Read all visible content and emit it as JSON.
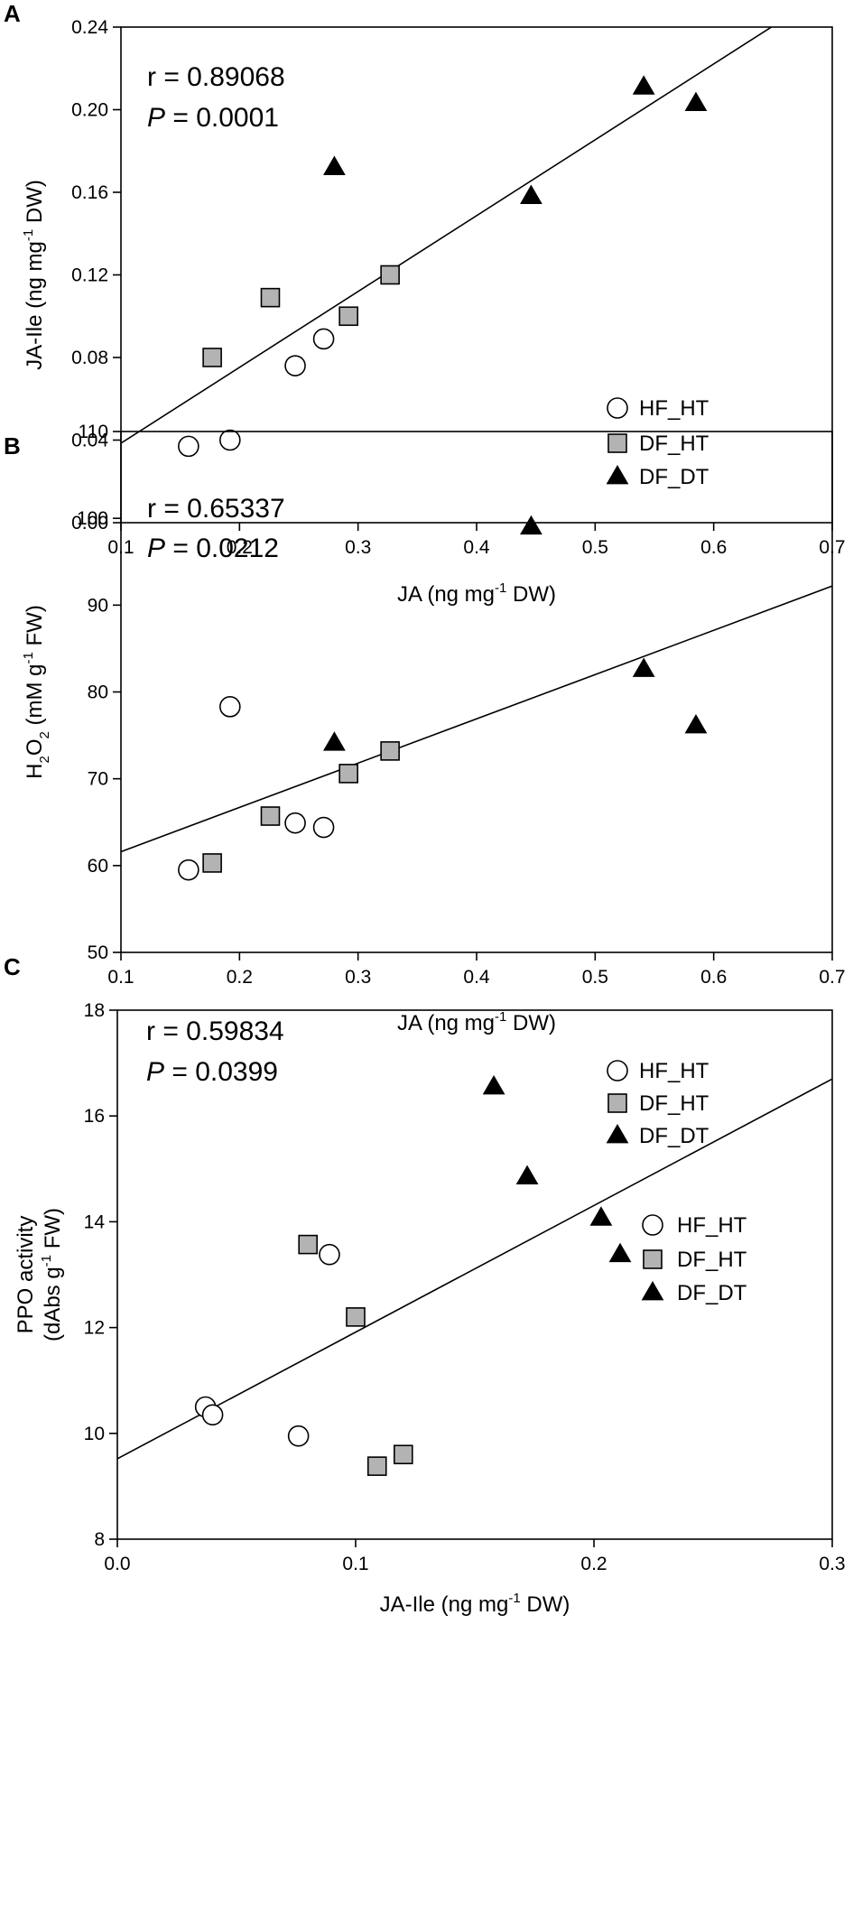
{
  "figure": {
    "series_styles": {
      "HF_HT": {
        "marker": "circle",
        "fill": "#ffffff",
        "stroke": "#000000"
      },
      "DF_HT": {
        "marker": "square",
        "fill": "#b3b3b3",
        "stroke": "#000000"
      },
      "DF_DT": {
        "marker": "triangle",
        "fill": "#000000",
        "stroke": "#000000"
      }
    }
  },
  "chart_data": [
    {
      "panel": "A",
      "type": "scatter",
      "xlabel": {
        "main": "JA (ng mg",
        "sup": "-1",
        "tail": " DW)"
      },
      "ylabel": {
        "main": "JA-Ile (ng mg",
        "sup": "-1",
        "tail": " DW)"
      },
      "xlim": [
        0.1,
        0.7
      ],
      "ylim": [
        0.0,
        0.24
      ],
      "xticks": [
        0.1,
        0.2,
        0.3,
        0.4,
        0.5,
        0.6,
        0.7
      ],
      "xtick_labels": [
        "0.1",
        "0.2",
        "0.3",
        "0.4",
        "0.5",
        "0.6",
        "0.7"
      ],
      "yticks": [
        0.0,
        0.04,
        0.08,
        0.12,
        0.16,
        0.2,
        0.24
      ],
      "ytick_labels": [
        "0.00",
        "0.04",
        "0.08",
        "0.12",
        "0.16",
        "0.20",
        "0.24"
      ],
      "stats": {
        "r_text": "r = 0.89068",
        "p_label": "P",
        "p_text": " = 0.0001"
      },
      "fit_line": {
        "x": [
          0.1,
          0.65
        ],
        "y": [
          0.0385,
          0.2405
        ]
      },
      "series": [
        {
          "name": "HF_HT",
          "x": [
            0.157,
            0.192,
            0.247,
            0.271
          ],
          "y": [
            0.037,
            0.04,
            0.076,
            0.089
          ]
        },
        {
          "name": "DF_HT",
          "x": [
            0.177,
            0.226,
            0.292,
            0.327
          ],
          "y": [
            0.08,
            0.109,
            0.1,
            0.12
          ]
        },
        {
          "name": "DF_DT",
          "x": [
            0.28,
            0.446,
            0.541,
            0.585
          ],
          "y": [
            0.172,
            0.158,
            0.211,
            0.203
          ]
        }
      ],
      "legend": [
        "HF_HT",
        "DF_HT",
        "DF_DT"
      ]
    },
    {
      "panel": "B",
      "type": "scatter",
      "xlabel": {
        "main": "JA (ng mg",
        "sup": "-1",
        "tail": " DW)"
      },
      "ylabel": {
        "h2o2": true,
        "main": "H",
        "sub1": "2",
        "mid": "O",
        "sub2": "2",
        "rest": " (mM g",
        "sup": "-1",
        "tail": " FW)"
      },
      "xlim": [
        0.1,
        0.7
      ],
      "ylim": [
        50,
        110
      ],
      "xticks": [
        0.1,
        0.2,
        0.3,
        0.4,
        0.5,
        0.6,
        0.7
      ],
      "xtick_labels": [
        "0.1",
        "0.2",
        "0.3",
        "0.4",
        "0.5",
        "0.6",
        "0.7"
      ],
      "yticks": [
        50,
        60,
        70,
        80,
        90,
        100,
        110
      ],
      "ytick_labels": [
        "50",
        "60",
        "70",
        "80",
        "90",
        "100",
        "110"
      ],
      "stats": {
        "r_text": "r = 0.65337",
        "p_label": "P",
        "p_text": " = 0.0212"
      },
      "fit_line": {
        "x": [
          0.1,
          0.7
        ],
        "y": [
          61.6,
          92.2
        ]
      },
      "series": [
        {
          "name": "HF_HT",
          "x": [
            0.157,
            0.192,
            0.247,
            0.271
          ],
          "y": [
            59.5,
            78.3,
            64.9,
            64.4
          ]
        },
        {
          "name": "DF_HT",
          "x": [
            0.177,
            0.226,
            0.292,
            0.327
          ],
          "y": [
            60.3,
            65.7,
            70.6,
            73.2
          ]
        },
        {
          "name": "DF_DT",
          "x": [
            0.28,
            0.446,
            0.541,
            0.585
          ],
          "y": [
            74.1,
            99.0,
            82.6,
            76.1
          ]
        }
      ],
      "legend": [
        "HF_HT",
        "DF_HT",
        "DF_DT"
      ]
    },
    {
      "panel": "C",
      "type": "scatter",
      "xlabel": {
        "main": "JA-Ile (ng mg",
        "sup": "-1",
        "tail": " DW)"
      },
      "ylabel": {
        "line1": "PPO activity",
        "main": "(dAbs g",
        "sup": "-1",
        "tail": " FW)"
      },
      "xlim": [
        0.0,
        0.3
      ],
      "ylim": [
        8,
        18
      ],
      "xticks": [
        0.0,
        0.1,
        0.2,
        0.3
      ],
      "xtick_labels": [
        "0.0",
        "0.1",
        "0.2",
        "0.3"
      ],
      "yticks": [
        8,
        10,
        12,
        14,
        16,
        18
      ],
      "ytick_labels": [
        "8",
        "10",
        "12",
        "14",
        "16",
        "18"
      ],
      "stats": {
        "r_text": "r = 0.59834",
        "p_label": "P",
        "p_text": " = 0.0399"
      },
      "fit_line": {
        "x": [
          0.0,
          0.3
        ],
        "y": [
          9.52,
          16.7
        ]
      },
      "series": [
        {
          "name": "HF_HT",
          "x": [
            0.037,
            0.04,
            0.076,
            0.089
          ],
          "y": [
            10.5,
            10.35,
            9.95,
            13.38
          ]
        },
        {
          "name": "DF_HT",
          "x": [
            0.08,
            0.1,
            0.109,
            0.12
          ],
          "y": [
            13.57,
            12.2,
            9.38,
            9.6
          ]
        },
        {
          "name": "DF_DT",
          "x": [
            0.158,
            0.172,
            0.203,
            0.211
          ],
          "y": [
            16.55,
            14.85,
            14.07,
            13.38
          ]
        }
      ],
      "legend": [
        "HF_HT",
        "DF_HT",
        "DF_DT"
      ]
    }
  ]
}
